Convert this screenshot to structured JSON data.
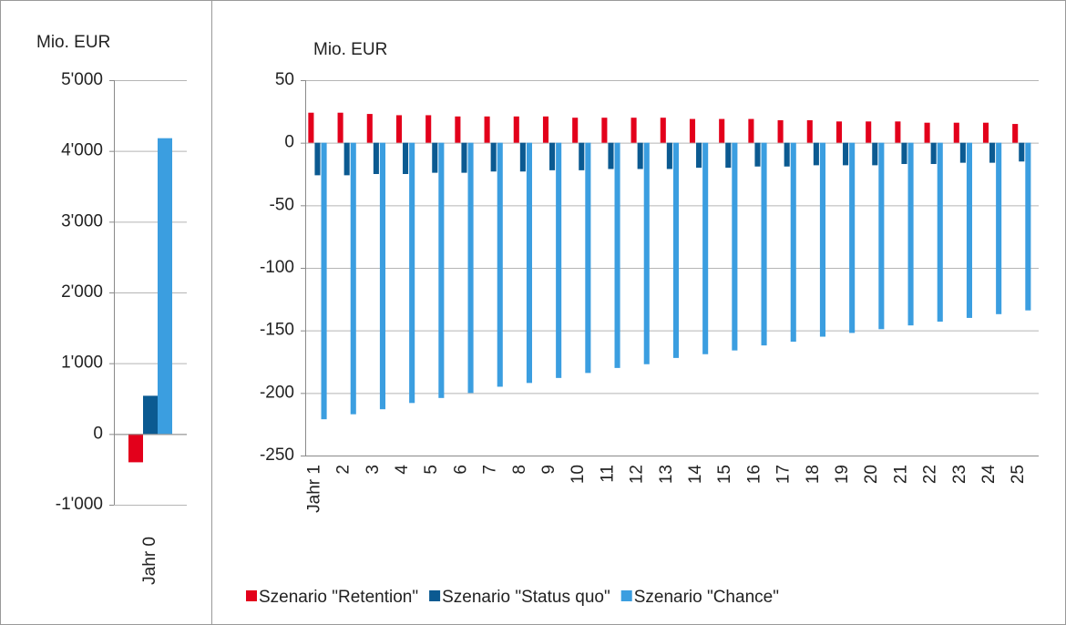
{
  "chart_data": [
    {
      "type": "bar",
      "y_label": "Mio. EUR",
      "categories": [
        "Jahr 0"
      ],
      "series": [
        {
          "color": "#e3001b",
          "values": [
            -400
          ]
        },
        {
          "color": "#0b5a91",
          "values": [
            540
          ]
        },
        {
          "color": "#3b9ee0",
          "values": [
            4180
          ]
        }
      ],
      "ylim": [
        -1000,
        5000
      ],
      "yticks": [
        {
          "value": -1000,
          "label": "-1'000"
        },
        0,
        {
          "value": 1000,
          "label": "1'000"
        },
        {
          "value": 2000,
          "label": "2'000"
        },
        {
          "value": 3000,
          "label": "3'000"
        },
        {
          "value": 4000,
          "label": "4'000"
        },
        {
          "value": 5000,
          "label": "5'000"
        }
      ],
      "grid": true
    },
    {
      "type": "bar",
      "y_label": "Mio. EUR",
      "categories": [
        "Jahr 1",
        "2",
        "3",
        "4",
        "5",
        "6",
        "7",
        "8",
        "9",
        "10",
        "11",
        "12",
        "13",
        "14",
        "15",
        "16",
        "17",
        "18",
        "19",
        "20",
        "21",
        "22",
        "23",
        "24",
        "25"
      ],
      "series": [
        {
          "name": "Szenario \"Retention\"",
          "color": "#e3001b",
          "values": [
            24,
            24,
            23,
            22,
            22,
            21,
            21,
            21,
            21,
            20,
            20,
            20,
            20,
            19,
            19,
            19,
            18,
            18,
            17,
            17,
            17,
            16,
            16,
            16,
            15
          ]
        },
        {
          "name": "Szenario \"Status quo\"",
          "color": "#0b5a91",
          "values": [
            -26,
            -26,
            -25,
            -25,
            -24,
            -24,
            -23,
            -23,
            -22,
            -22,
            -21,
            -21,
            -21,
            -20,
            -20,
            -19,
            -19,
            -18,
            -18,
            -18,
            -17,
            -17,
            -16,
            -16,
            -15
          ]
        },
        {
          "name": "Szenario \"Chance\"",
          "color": "#3b9ee0",
          "values": [
            -221,
            -217,
            -213,
            -208,
            -204,
            -200,
            -195,
            -192,
            -188,
            -184,
            -180,
            -177,
            -172,
            -169,
            -166,
            -162,
            -159,
            -155,
            -152,
            -149,
            -146,
            -143,
            -140,
            -137,
            -134
          ]
        }
      ],
      "ylim": [
        -250,
        50
      ],
      "yticks": [
        -250,
        -200,
        -150,
        -100,
        -50,
        0,
        50
      ],
      "grid": true,
      "legend": "bottom"
    }
  ]
}
